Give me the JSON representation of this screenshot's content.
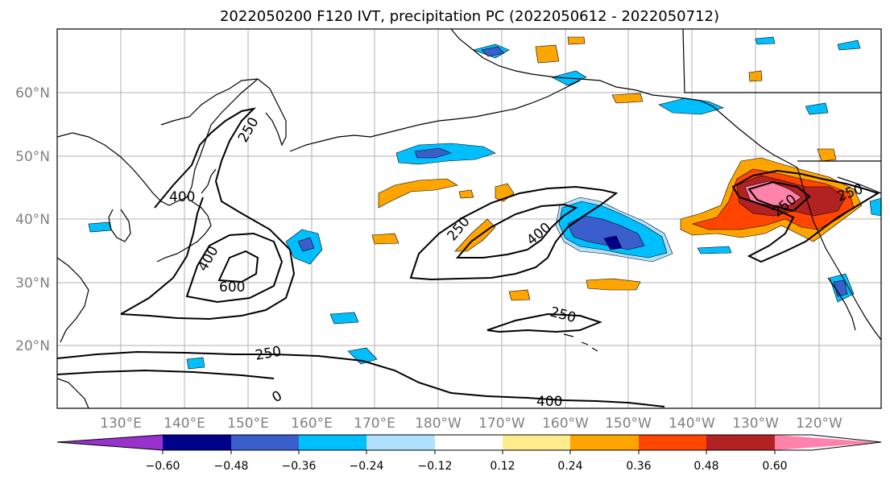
{
  "title": "2022050200 F120 IVT, precipitation PC (2022050612 - 2022050712)",
  "lon_labels": [
    "130°E",
    "140°E",
    "150°E",
    "160°E",
    "170°E",
    "180°W",
    "170°W",
    "160°W",
    "150°W",
    "140°W",
    "130°W",
    "120°W"
  ],
  "lat_labels": [
    "60°N",
    "50°N",
    "40°N",
    "30°N",
    "20°N"
  ],
  "contour_labels": [
    "250",
    "400",
    "400",
    "600",
    "250",
    "250",
    "400",
    "250",
    "250",
    "250",
    "400",
    "0"
  ],
  "colorbar": {
    "colors": [
      "#9932cc",
      "#00008b",
      "#3a5fcd",
      "#00bfff",
      "#b0e2ff",
      "#ffffff",
      "#ffec8b",
      "#ffa500",
      "#ff4500",
      "#b22222",
      "#ff82ab"
    ],
    "labels": [
      "−0.60",
      "−0.48",
      "−0.36",
      "−0.24",
      "−0.12",
      "0.12",
      "0.24",
      "0.36",
      "0.48",
      "0.60"
    ]
  },
  "colors": {
    "coast": "#000000",
    "contour": "#000000",
    "grid": "#b0b0b0"
  }
}
